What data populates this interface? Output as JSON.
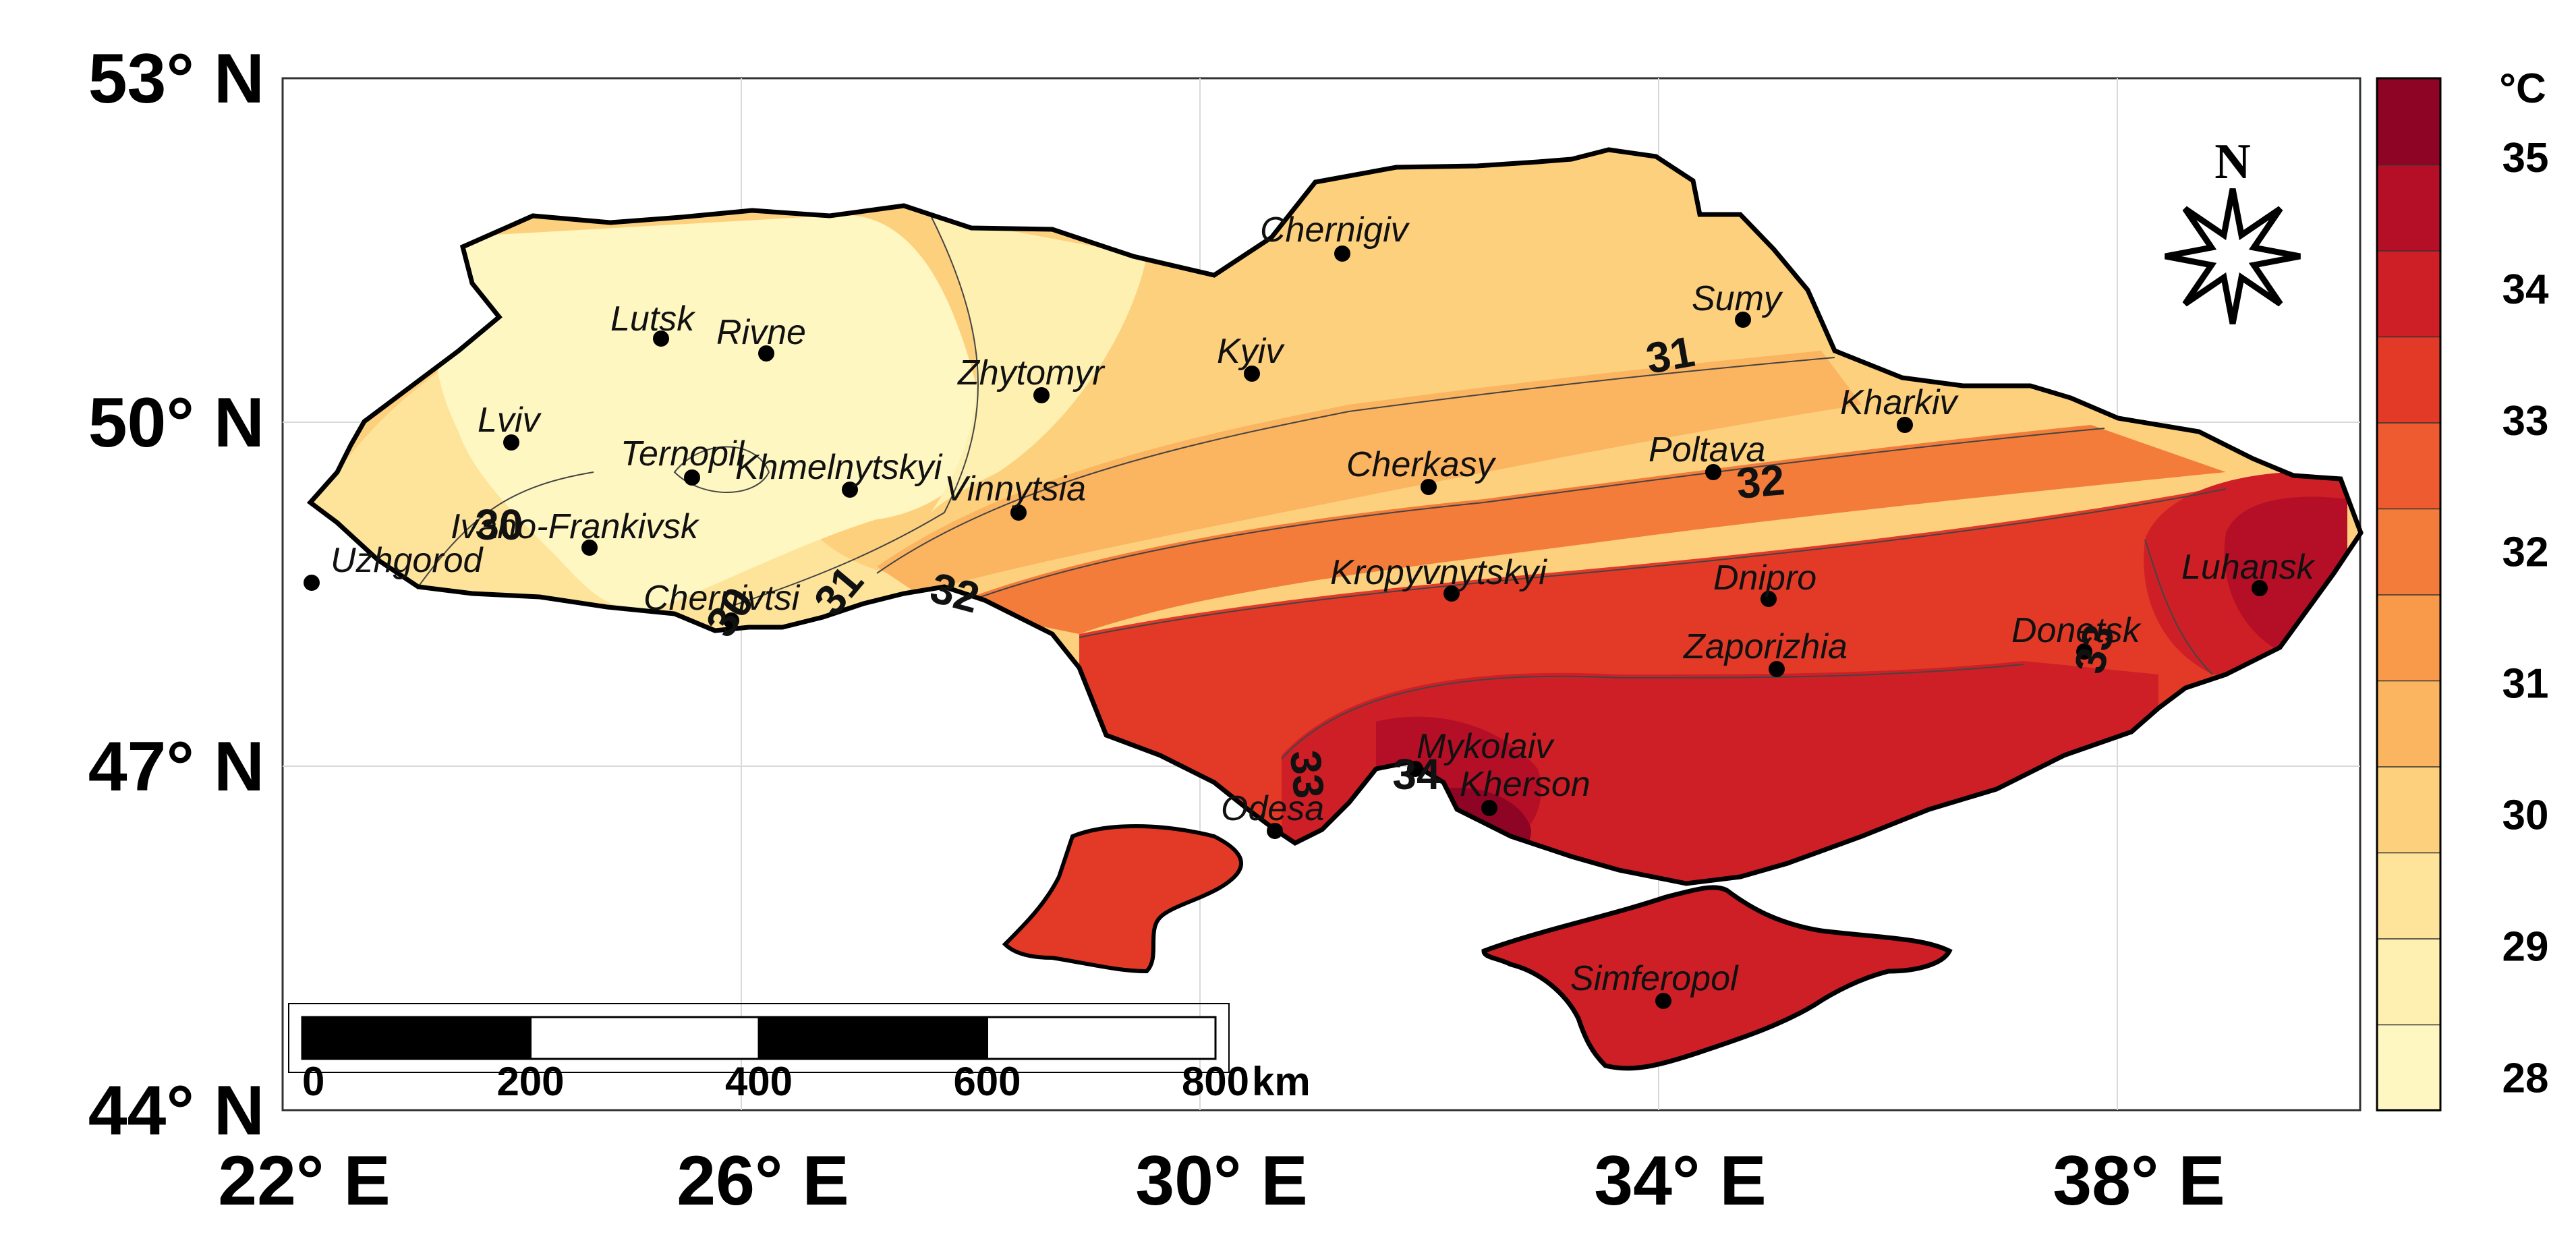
{
  "map": {
    "lat_ticks": [
      "53° N",
      "50° N",
      "47° N",
      "44° N"
    ],
    "lon_ticks": [
      "22° E",
      "26° E",
      "30° E",
      "34° E",
      "38° E"
    ]
  },
  "colorbar": {
    "unit": "°C",
    "tick_values": [
      28,
      29,
      30,
      31,
      32,
      33,
      34,
      35
    ],
    "tick_labels": [
      "28",
      "29",
      "30",
      "31",
      "32",
      "33",
      "34",
      "35"
    ],
    "band_colors": [
      "#fff7c2",
      "#fef0b0",
      "#fde49a",
      "#fdd07e",
      "#fbb460",
      "#f99a4a",
      "#f47c3a",
      "#ef5b30",
      "#e33a28",
      "#cf1f26",
      "#b40f26",
      "#8e0424"
    ]
  },
  "isotherm_labels": [
    "30",
    "30",
    "31",
    "31",
    "32",
    "32",
    "33",
    "33",
    "34",
    "33"
  ],
  "cities": [
    {
      "name": "Chernigiv"
    },
    {
      "name": "Lutsk"
    },
    {
      "name": "Rivne"
    },
    {
      "name": "Sumy"
    },
    {
      "name": "Zhytomyr"
    },
    {
      "name": "Kyiv"
    },
    {
      "name": "Lviv"
    },
    {
      "name": "Kharkiv"
    },
    {
      "name": "Ternopil"
    },
    {
      "name": "Khmelnytskyi"
    },
    {
      "name": "Cherkasy"
    },
    {
      "name": "Poltava"
    },
    {
      "name": "Vinnytsia"
    },
    {
      "name": "Ivano-Frankivsk"
    },
    {
      "name": "Uzhgorod"
    },
    {
      "name": "Kropyvnytskyi"
    },
    {
      "name": "Dnipro"
    },
    {
      "name": "Luhansk"
    },
    {
      "name": "Chernivtsi"
    },
    {
      "name": "Donetsk"
    },
    {
      "name": "Zaporizhia"
    },
    {
      "name": "Mykolaiv"
    },
    {
      "name": "Kherson"
    },
    {
      "name": "Odesa"
    },
    {
      "name": "Simferopol"
    }
  ],
  "scale_bar": {
    "ticks": [
      "0",
      "200",
      "400",
      "600",
      "800"
    ],
    "unit": "km"
  },
  "north_arrow": {
    "letter": "N",
    "icon": "compass-star-icon"
  }
}
